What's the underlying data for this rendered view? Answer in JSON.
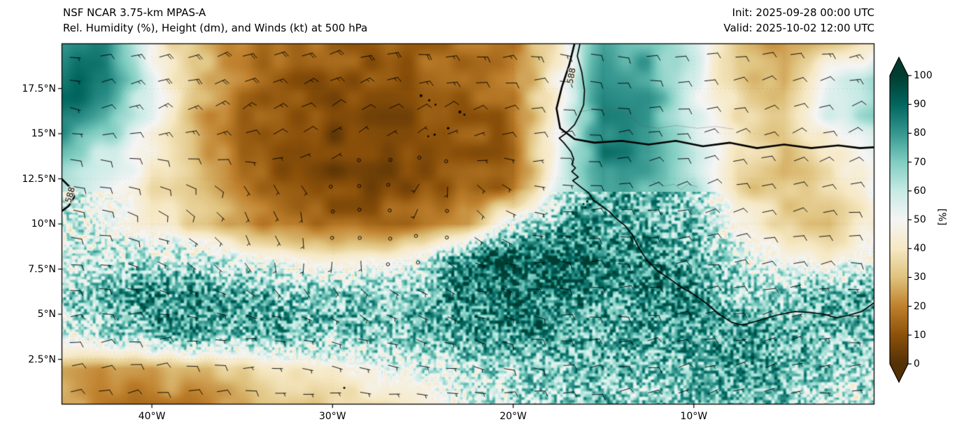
{
  "header": {
    "title_line1": "NSF NCAR 3.75-km MPAS-A",
    "title_line2": "Rel. Humidity (%), Height (dm), and Winds (kt) at 500 hPa",
    "init_label": "Init: 2025-09-28 00:00 UTC",
    "valid_label": "Valid: 2025-10-02 12:00 UTC"
  },
  "axes": {
    "lon_range": [
      -45,
      0
    ],
    "lat_range": [
      0,
      20
    ],
    "x_ticks": [
      {
        "lon": -40,
        "label": "40°W"
      },
      {
        "lon": -30,
        "label": "30°W"
      },
      {
        "lon": -20,
        "label": "20°W"
      },
      {
        "lon": -10,
        "label": "10°W"
      }
    ],
    "y_ticks": [
      {
        "lat": 17.5,
        "label": "17.5°N"
      },
      {
        "lat": 15.0,
        "label": "15°N"
      },
      {
        "lat": 12.5,
        "label": "12.5°N"
      },
      {
        "lat": 10.0,
        "label": "10°N"
      },
      {
        "lat": 7.5,
        "label": "7.5°N"
      },
      {
        "lat": 5.0,
        "label": "5°N"
      },
      {
        "lat": 2.5,
        "label": "2.5°N"
      }
    ]
  },
  "colorbar": {
    "label": "[%]",
    "units": "%",
    "min": 0,
    "max": 100,
    "extend": "both",
    "ticks": [
      0,
      10,
      20,
      30,
      40,
      50,
      60,
      70,
      80,
      90,
      100
    ],
    "stops": [
      {
        "v": 0,
        "c": "#543005"
      },
      {
        "v": 10,
        "c": "#8c510a"
      },
      {
        "v": 20,
        "c": "#bf812d"
      },
      {
        "v": 30,
        "c": "#dfc27d"
      },
      {
        "v": 40,
        "c": "#f6e8c3"
      },
      {
        "v": 50,
        "c": "#f5f5f5"
      },
      {
        "v": 60,
        "c": "#c7eae5"
      },
      {
        "v": 70,
        "c": "#80cdc1"
      },
      {
        "v": 80,
        "c": "#35978f"
      },
      {
        "v": 90,
        "c": "#01665e"
      },
      {
        "v": 100,
        "c": "#003c30"
      }
    ]
  },
  "chart_data": {
    "type": "heatmap",
    "title": "Rel. Humidity (%), Height (dm), and Winds (kt) at 500 hPa",
    "model": "NSF NCAR 3.75-km MPAS-A",
    "init_time": "2025-09-28 00:00 UTC",
    "valid_time": "2025-10-02 12:00 UTC",
    "field_units": "%",
    "overlays": [
      "wind_barbs_kt",
      "geopotential_height_contours_dm",
      "coastlines"
    ],
    "humidity": {
      "lon0": -45,
      "dlon": 2.5,
      "lat0": 20,
      "dlat": -2,
      "values": [
        [
          85,
          80,
          45,
          30,
          20,
          15,
          15,
          15,
          15,
          18,
          20,
          40,
          78,
          75,
          58,
          30,
          25,
          30,
          38
        ],
        [
          90,
          85,
          55,
          30,
          18,
          12,
          10,
          10,
          12,
          15,
          18,
          45,
          82,
          78,
          55,
          32,
          28,
          55,
          68
        ],
        [
          88,
          75,
          50,
          28,
          15,
          10,
          8,
          8,
          10,
          12,
          15,
          48,
          85,
          80,
          55,
          38,
          32,
          55,
          65
        ],
        [
          70,
          60,
          45,
          30,
          15,
          8,
          5,
          6,
          8,
          10,
          12,
          52,
          85,
          80,
          60,
          40,
          30,
          40,
          55
        ],
        [
          65,
          55,
          40,
          28,
          18,
          12,
          8,
          8,
          10,
          12,
          15,
          55,
          80,
          75,
          65,
          35,
          30,
          35,
          50
        ],
        [
          60,
          50,
          40,
          35,
          25,
          18,
          15,
          15,
          18,
          25,
          60,
          75,
          80,
          75,
          70,
          50,
          35,
          30,
          45
        ],
        [
          55,
          60,
          65,
          60,
          55,
          50,
          45,
          45,
          55,
          85,
          95,
          90,
          85,
          80,
          75,
          60,
          50,
          45,
          55
        ],
        [
          65,
          75,
          80,
          80,
          75,
          70,
          70,
          65,
          70,
          85,
          90,
          85,
          80,
          85,
          80,
          70,
          65,
          70,
          75
        ],
        [
          55,
          65,
          75,
          80,
          75,
          75,
          70,
          70,
          75,
          80,
          85,
          80,
          75,
          80,
          75,
          80,
          75,
          70,
          70
        ],
        [
          30,
          25,
          25,
          30,
          35,
          40,
          45,
          50,
          55,
          60,
          65,
          70,
          75,
          70,
          75,
          80,
          75,
          65,
          60
        ],
        [
          25,
          20,
          18,
          20,
          25,
          30,
          35,
          40,
          45,
          55,
          60,
          65,
          70,
          65,
          70,
          75,
          70,
          60,
          55
        ]
      ]
    },
    "wind_kt": {
      "lon0": -45,
      "dlon": 5,
      "lat0": 20,
      "dlat": -4,
      "u": [
        [
          -6,
          -20,
          -22,
          -22,
          -20,
          -15,
          -12,
          -10,
          -12,
          -14
        ],
        [
          -1,
          -15,
          -14,
          -6,
          -6,
          -10,
          -12,
          -10,
          -10,
          -12
        ],
        [
          -12,
          -10,
          -4,
          0,
          2,
          -4,
          -10,
          -12,
          -10,
          -10
        ],
        [
          -8,
          -6,
          -2,
          1,
          -1,
          -5,
          -10,
          -10,
          -8,
          -8
        ],
        [
          -10,
          -8,
          -6,
          -5,
          -6,
          -8,
          -10,
          -8,
          -6,
          -6
        ],
        [
          -12,
          -10,
          -8,
          -6,
          -6,
          -8,
          -8,
          -6,
          -5,
          -5
        ]
      ],
      "v": [
        [
          0,
          -5,
          -6,
          -4,
          -2,
          0,
          2,
          0,
          -2,
          -3
        ],
        [
          1,
          -5,
          -8,
          -5,
          -4,
          -2,
          0,
          -2,
          -4,
          -4
        ],
        [
          2,
          4,
          6,
          1,
          3,
          2,
          -2,
          -3,
          -3,
          -2
        ],
        [
          0,
          2,
          4,
          3,
          2,
          1,
          0,
          -2,
          -2,
          0
        ],
        [
          -2,
          0,
          0,
          2,
          2,
          2,
          0,
          -2,
          -2,
          0
        ],
        [
          -2,
          -2,
          0,
          0,
          0,
          0,
          -2,
          -2,
          0,
          0
        ]
      ]
    },
    "contours": [
      {
        "level": 588,
        "label": "588",
        "points": [
          [
            -16.6,
            20
          ],
          [
            -16.9,
            18.8
          ],
          [
            -17.3,
            17.6
          ],
          [
            -17.6,
            16.4
          ],
          [
            -17.4,
            15.3
          ],
          [
            -16.6,
            14.7
          ],
          [
            -15.5,
            14.5
          ],
          [
            -14,
            14.6
          ],
          [
            -12.5,
            14.4
          ],
          [
            -11,
            14.6
          ],
          [
            -9.5,
            14.3
          ],
          [
            -8,
            14.5
          ],
          [
            -6.5,
            14.2
          ],
          [
            -5,
            14.4
          ],
          [
            -3.5,
            14.2
          ],
          [
            -2,
            14.35
          ],
          [
            -0.8,
            14.2
          ],
          [
            0,
            14.25
          ]
        ],
        "label_pos": {
          "lon": -16.75,
          "lat": 18.2,
          "rot": -80
        }
      },
      {
        "level": 588,
        "label": "588",
        "points": [
          [
            -45,
            12.5
          ],
          [
            -44.5,
            12.0
          ],
          [
            -44.3,
            11.5
          ],
          [
            -44.6,
            11.0
          ],
          [
            -45,
            10.7
          ]
        ],
        "label_pos": {
          "lon": -44.5,
          "lat": 11.6,
          "rot": -75
        }
      }
    ],
    "coastline": [
      [
        -16.3,
        20
      ],
      [
        -16.45,
        19.3
      ],
      [
        -16.2,
        18.4
      ],
      [
        -16.05,
        17.4
      ],
      [
        -16.1,
        16.6
      ],
      [
        -16.35,
        16.0
      ],
      [
        -16.6,
        15.5
      ],
      [
        -17.1,
        15.0
      ],
      [
        -17.45,
        14.75
      ],
      [
        -17.2,
        14.5
      ],
      [
        -16.8,
        14.0
      ],
      [
        -16.65,
        13.6
      ],
      [
        -16.75,
        13.3
      ],
      [
        -16.55,
        13.1
      ],
      [
        -16.75,
        12.9
      ],
      [
        -16.4,
        12.6
      ],
      [
        -16.7,
        12.4
      ],
      [
        -16.2,
        12.0
      ],
      [
        -15.8,
        11.7
      ],
      [
        -15.55,
        11.3
      ],
      [
        -15.1,
        11.0
      ],
      [
        -14.7,
        10.7
      ],
      [
        -14.3,
        10.3
      ],
      [
        -13.8,
        9.9
      ],
      [
        -13.4,
        9.4
      ],
      [
        -13.2,
        9.0
      ],
      [
        -13.0,
        8.6
      ],
      [
        -12.6,
        8.0
      ],
      [
        -12.0,
        7.4
      ],
      [
        -11.4,
        7.0
      ],
      [
        -10.7,
        6.5
      ],
      [
        -10.0,
        6.1
      ],
      [
        -9.3,
        5.6
      ],
      [
        -8.6,
        5.0
      ],
      [
        -7.9,
        4.55
      ],
      [
        -7.3,
        4.4
      ],
      [
        -6.4,
        4.65
      ],
      [
        -5.4,
        4.95
      ],
      [
        -4.4,
        5.15
      ],
      [
        -3.6,
        5.1
      ],
      [
        -2.8,
        5.0
      ],
      [
        -2.1,
        4.8
      ],
      [
        -1.4,
        4.95
      ],
      [
        -0.7,
        5.15
      ],
      [
        0,
        5.65
      ]
    ],
    "islands": [
      {
        "lon": -25.1,
        "lat": 17.1,
        "r": 2.0
      },
      {
        "lon": -24.65,
        "lat": 16.85,
        "r": 1.6
      },
      {
        "lon": -24.3,
        "lat": 16.6,
        "r": 1.4
      },
      {
        "lon": -22.95,
        "lat": 16.2,
        "r": 2.0
      },
      {
        "lon": -22.7,
        "lat": 16.05,
        "r": 1.4
      },
      {
        "lon": -23.6,
        "lat": 15.3,
        "r": 1.8
      },
      {
        "lon": -24.35,
        "lat": 14.95,
        "r": 1.6
      },
      {
        "lon": -24.7,
        "lat": 14.85,
        "r": 1.3
      },
      {
        "lon": -29.35,
        "lat": 0.92,
        "r": 1.4
      },
      {
        "lon": -15.9,
        "lat": 11.25,
        "r": 1.5
      },
      {
        "lon": -16.1,
        "lat": 11.1,
        "r": 1.3
      },
      {
        "lon": -15.75,
        "lat": 11.05,
        "r": 1.2
      },
      {
        "lon": -16.0,
        "lat": 10.9,
        "r": 1.2
      }
    ],
    "borders": [
      [
        [
          -16.4,
          16.2
        ],
        [
          -15.0,
          16.45
        ],
        [
          -13.8,
          16.15
        ],
        [
          -12.9,
          15.45
        ],
        [
          -12.0,
          15.3
        ],
        [
          -11.0,
          15.45
        ],
        [
          -9.8,
          15.3
        ],
        [
          -8.8,
          15.4
        ],
        [
          -7.8,
          15.25
        ]
      ],
      [
        [
          -12.3,
          12.35
        ],
        [
          -11.6,
          12.1
        ],
        [
          -11.1,
          12.2
        ],
        [
          -10.7,
          11.9
        ],
        [
          -10.3,
          12.2
        ],
        [
          -9.8,
          12.05
        ]
      ]
    ]
  }
}
